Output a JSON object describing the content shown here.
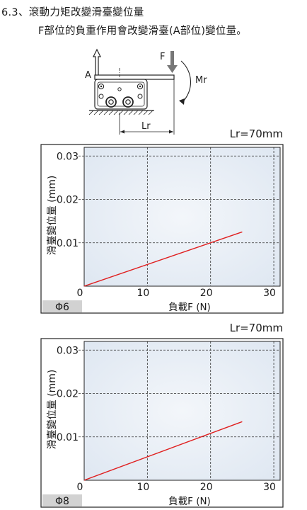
{
  "heading": {
    "line1": "6.3、滾動力矩改變滑臺變位量",
    "line2": "F部位的負重作用會改變滑臺(A部位)變位量。"
  },
  "diagram": {
    "label_a": "A",
    "label_f": "F",
    "label_mr": "Mr",
    "label_lr": "Lr"
  },
  "colors": {
    "series": "#e02020",
    "plot_bg": "#e6edf6",
    "label_bg": "#d2d2d2"
  },
  "chart_data": [
    {
      "type": "line",
      "title": "Lr=70mm",
      "xlabel": "負載F (N)",
      "ylabel": "滑臺變位量 (mm)",
      "xlim": [
        0,
        31
      ],
      "ylim": [
        0,
        0.032
      ],
      "xticks": [
        "0",
        "10",
        "20",
        "30"
      ],
      "xtick_values": [
        0,
        10,
        20,
        30
      ],
      "yticks": [
        "0.03",
        "0.02",
        "0.01"
      ],
      "ytick_values": [
        0.03,
        0.02,
        0.01
      ],
      "grid": true,
      "tag": "Φ6",
      "series": [
        {
          "x": [
            0,
            25
          ],
          "y": [
            0,
            0.0125
          ]
        }
      ]
    },
    {
      "type": "line",
      "title": "Lr=70mm",
      "xlabel": "負載F (N)",
      "ylabel": "滑臺變位量 (mm)",
      "xlim": [
        0,
        31
      ],
      "ylim": [
        0,
        0.032
      ],
      "xticks": [
        "0",
        "10",
        "20",
        "30"
      ],
      "xtick_values": [
        0,
        10,
        20,
        30
      ],
      "yticks": [
        "0.03",
        "0.02",
        "0.01"
      ],
      "ytick_values": [
        0.03,
        0.02,
        0.01
      ],
      "grid": true,
      "tag": "Φ8",
      "series": [
        {
          "x": [
            0,
            25
          ],
          "y": [
            0,
            0.0135
          ]
        }
      ]
    }
  ]
}
